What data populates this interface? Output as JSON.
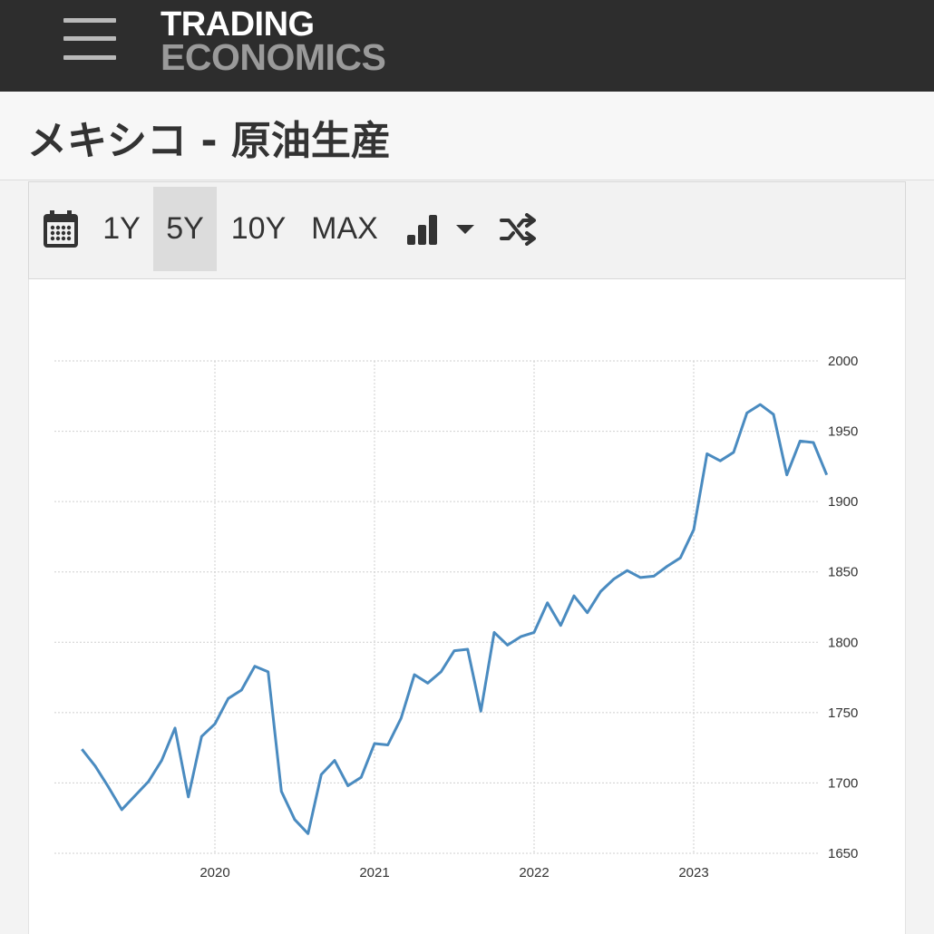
{
  "header": {
    "logo_line1": "TRADING",
    "logo_line2": "ECONOMICS"
  },
  "page": {
    "title": "メキシコ - 原油生産"
  },
  "toolbar": {
    "icons": [
      "calendar-icon",
      "bar-chart-icon",
      "dropdown-caret-icon",
      "shuffle-icon"
    ],
    "buttons": [
      "1Y",
      "5Y",
      "10Y",
      "MAX"
    ],
    "active": "5Y"
  },
  "colors": {
    "line": "#4a8bc0",
    "topbar": "#2d2d2d",
    "grid": "#cfcfcf"
  },
  "chart_data": {
    "type": "line",
    "title": "",
    "xlabel": "",
    "ylabel": "",
    "ylim": [
      1650,
      2000
    ],
    "y_ticks": [
      1650,
      1700,
      1750,
      1800,
      1850,
      1900,
      1950,
      2000
    ],
    "x_ticks": [
      "2020",
      "2021",
      "2022",
      "2023"
    ],
    "grid": true,
    "series": [
      {
        "values": [
          [
            "2019-03",
            1724
          ],
          [
            "2019-04",
            1712
          ],
          [
            "2019-05",
            1697
          ],
          [
            "2019-06",
            1681
          ],
          [
            "2019-07",
            1691
          ],
          [
            "2019-08",
            1701
          ],
          [
            "2019-09",
            1716
          ],
          [
            "2019-10",
            1739
          ],
          [
            "2019-11",
            1690
          ],
          [
            "2019-12",
            1733
          ],
          [
            "2020-01",
            1742
          ],
          [
            "2020-02",
            1760
          ],
          [
            "2020-03",
            1766
          ],
          [
            "2020-04",
            1783
          ],
          [
            "2020-05",
            1779
          ],
          [
            "2020-06",
            1694
          ],
          [
            "2020-07",
            1674
          ],
          [
            "2020-08",
            1664
          ],
          [
            "2020-09",
            1706
          ],
          [
            "2020-10",
            1716
          ],
          [
            "2020-11",
            1698
          ],
          [
            "2020-12",
            1704
          ],
          [
            "2021-01",
            1728
          ],
          [
            "2021-02",
            1727
          ],
          [
            "2021-03",
            1746
          ],
          [
            "2021-04",
            1777
          ],
          [
            "2021-05",
            1771
          ],
          [
            "2021-06",
            1779
          ],
          [
            "2021-07",
            1794
          ],
          [
            "2021-08",
            1795
          ],
          [
            "2021-09",
            1751
          ],
          [
            "2021-10",
            1807
          ],
          [
            "2021-11",
            1798
          ],
          [
            "2021-12",
            1804
          ],
          [
            "2022-01",
            1807
          ],
          [
            "2022-02",
            1828
          ],
          [
            "2022-03",
            1812
          ],
          [
            "2022-04",
            1833
          ],
          [
            "2022-05",
            1821
          ],
          [
            "2022-06",
            1836
          ],
          [
            "2022-07",
            1845
          ],
          [
            "2022-08",
            1851
          ],
          [
            "2022-09",
            1846
          ],
          [
            "2022-10",
            1847
          ],
          [
            "2022-11",
            1854
          ],
          [
            "2022-12",
            1860
          ],
          [
            "2023-01",
            1880
          ],
          [
            "2023-02",
            1934
          ],
          [
            "2023-03",
            1929
          ],
          [
            "2023-04",
            1935
          ],
          [
            "2023-05",
            1963
          ],
          [
            "2023-06",
            1969
          ],
          [
            "2023-07",
            1962
          ],
          [
            "2023-08",
            1919
          ],
          [
            "2023-09",
            1943
          ],
          [
            "2023-10",
            1942
          ],
          [
            "2023-11",
            1919
          ]
        ]
      }
    ]
  }
}
